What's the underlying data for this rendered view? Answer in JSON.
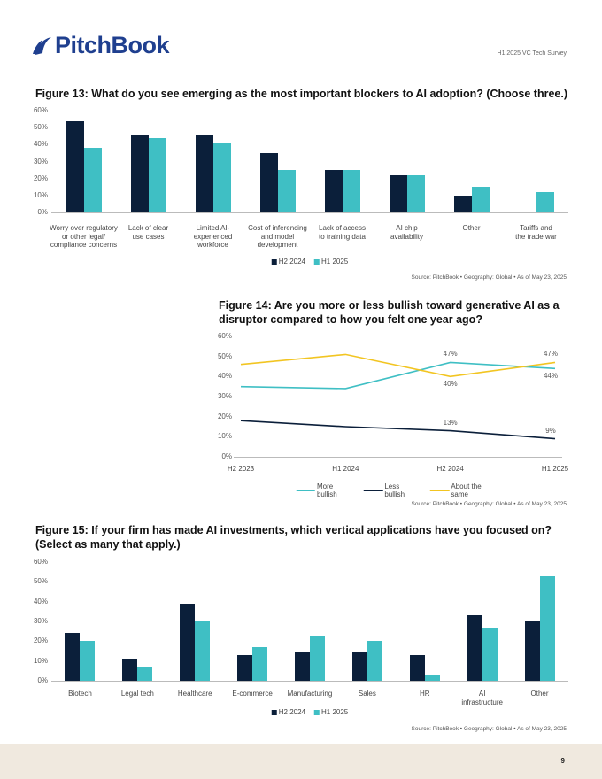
{
  "header": {
    "logo_text": "PitchBook",
    "report_name": "H1 2025 VC Tech Survey"
  },
  "figures": [
    {
      "title": "Figure 13: What do you see emerging as the most important blockers to AI adoption? (Choose three.)",
      "source": "Source: PitchBook  •  Geography: Global  •  As of May 23, 2025"
    },
    {
      "title": "Figure 14: Are you more or less bullish toward generative AI as a disruptor compared to how you felt one year ago?",
      "source": "Source: PitchBook  •  Geography: Global  •  As of May 23, 2025"
    },
    {
      "title": "Figure 15: If your firm has made AI investments, which vertical applications have you focused on? (Select as many that apply.)",
      "source": "Source: PitchBook  •  Geography: Global  •  As of May 23, 2025"
    }
  ],
  "footer": {
    "page_number": "9"
  },
  "colors": {
    "dark_navy": "#0b1f3a",
    "teal": "#3fbfc4",
    "yellow": "#f2c522",
    "footer_bg": "#f0e9df",
    "brand_blue": "#1f3f8f"
  },
  "chart_data": [
    {
      "type": "bar",
      "categories": [
        "Worry over regulatory\nor other legal/\ncompliance concerns",
        "Lack of clear\nuse cases",
        "Limited AI-\nexperienced\nworkforce",
        "Cost of inferencing\nand model\ndevelopment",
        "Lack of access\nto training data",
        "AI chip\navailability",
        "Other",
        "Tariffs and\nthe trade war"
      ],
      "series": [
        {
          "name": "H2 2024",
          "color": "#0b1f3a",
          "values": [
            54,
            46,
            46,
            35,
            25,
            22,
            10,
            null
          ]
        },
        {
          "name": "H1 2025",
          "color": "#3fbfc4",
          "values": [
            38,
            44,
            41,
            25,
            25,
            22,
            15,
            12
          ]
        }
      ],
      "yticks": [
        "0%",
        "10%",
        "20%",
        "30%",
        "40%",
        "50%",
        "60%"
      ],
      "ylim": [
        0,
        60
      ],
      "legend": "bottom",
      "grid": false
    },
    {
      "type": "line",
      "categories": [
        "H2 2023",
        "H1 2024",
        "H2 2024",
        "H1 2025"
      ],
      "series": [
        {
          "name": "More bullish",
          "color": "#3fbfc4",
          "values": [
            35,
            34,
            47,
            44
          ],
          "labels": [
            null,
            null,
            "47%",
            "44%"
          ]
        },
        {
          "name": "Less bullish",
          "color": "#0b1f3a",
          "values": [
            18,
            15,
            13,
            9
          ],
          "labels": [
            null,
            null,
            "13%",
            "9%"
          ]
        },
        {
          "name": "About the same",
          "color": "#f2c522",
          "values": [
            46,
            51,
            40,
            47
          ],
          "labels": [
            null,
            null,
            "40%",
            "47%"
          ]
        }
      ],
      "yticks": [
        "0%",
        "10%",
        "20%",
        "30%",
        "40%",
        "50%",
        "60%"
      ],
      "ylim": [
        0,
        60
      ],
      "legend": "bottom",
      "grid": false
    },
    {
      "type": "bar",
      "categories": [
        "Biotech",
        "Legal tech",
        "Healthcare",
        "E-commerce",
        "Manufacturing",
        "Sales",
        "HR",
        "AI\ninfrastructure",
        "Other"
      ],
      "series": [
        {
          "name": "H2 2024",
          "color": "#0b1f3a",
          "values": [
            24,
            11,
            39,
            13,
            15,
            15,
            13,
            33,
            30
          ]
        },
        {
          "name": "H1 2025",
          "color": "#3fbfc4",
          "values": [
            20,
            7,
            30,
            17,
            23,
            20,
            3,
            27,
            53
          ]
        }
      ],
      "yticks": [
        "0%",
        "10%",
        "20%",
        "30%",
        "40%",
        "50%",
        "60%"
      ],
      "ylim": [
        0,
        60
      ],
      "legend": "bottom",
      "grid": false
    }
  ]
}
